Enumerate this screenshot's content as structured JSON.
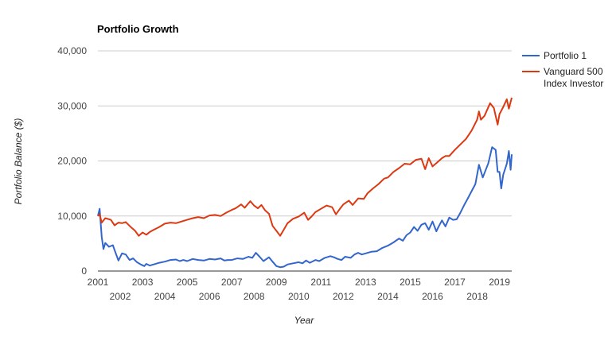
{
  "chart_data": {
    "type": "line",
    "title": "Portfolio Growth",
    "xlabel": "Year",
    "ylabel": "Portfolio Balance ($)",
    "xlim": [
      2001.0,
      2019.55
    ],
    "ylim": [
      0,
      40000
    ],
    "yticks": [
      0,
      10000,
      20000,
      30000,
      40000
    ],
    "ytick_labels": [
      "0",
      "10,000",
      "20,000",
      "30,000",
      "40,000"
    ],
    "xticks_top_row": [
      "2001",
      "2003",
      "2005",
      "2007",
      "2009",
      "2011",
      "2013",
      "2015",
      "2017",
      "2019"
    ],
    "xticks_bottom_row": [
      "2002",
      "2004",
      "2006",
      "2008",
      "2010",
      "2012",
      "2014",
      "2016",
      "2018"
    ],
    "grid": true,
    "legend_position": "right",
    "series": [
      {
        "name": "Portfolio 1",
        "color": "#3366cc",
        "points": [
          [
            2001.0,
            10000
          ],
          [
            2001.08,
            11300
          ],
          [
            2001.17,
            6200
          ],
          [
            2001.25,
            4000
          ],
          [
            2001.33,
            5100
          ],
          [
            2001.5,
            4400
          ],
          [
            2001.67,
            4700
          ],
          [
            2001.75,
            3800
          ],
          [
            2001.92,
            1900
          ],
          [
            2002.08,
            3200
          ],
          [
            2002.25,
            3000
          ],
          [
            2002.42,
            2000
          ],
          [
            2002.58,
            2300
          ],
          [
            2002.75,
            1600
          ],
          [
            2002.92,
            1200
          ],
          [
            2003.08,
            900
          ],
          [
            2003.17,
            1300
          ],
          [
            2003.33,
            1000
          ],
          [
            2003.5,
            1200
          ],
          [
            2003.75,
            1500
          ],
          [
            2004.0,
            1700
          ],
          [
            2004.25,
            2000
          ],
          [
            2004.5,
            2100
          ],
          [
            2004.67,
            1800
          ],
          [
            2004.83,
            2000
          ],
          [
            2005.0,
            1800
          ],
          [
            2005.25,
            2200
          ],
          [
            2005.5,
            2000
          ],
          [
            2005.75,
            1900
          ],
          [
            2006.0,
            2200
          ],
          [
            2006.25,
            2100
          ],
          [
            2006.5,
            2300
          ],
          [
            2006.67,
            1900
          ],
          [
            2006.83,
            2000
          ],
          [
            2007.0,
            2000
          ],
          [
            2007.25,
            2300
          ],
          [
            2007.5,
            2200
          ],
          [
            2007.75,
            2600
          ],
          [
            2007.92,
            2400
          ],
          [
            2008.08,
            3300
          ],
          [
            2008.25,
            2600
          ],
          [
            2008.42,
            1800
          ],
          [
            2008.67,
            2500
          ],
          [
            2008.83,
            1700
          ],
          [
            2009.0,
            900
          ],
          [
            2009.17,
            700
          ],
          [
            2009.33,
            800
          ],
          [
            2009.5,
            1200
          ],
          [
            2009.75,
            1400
          ],
          [
            2010.0,
            1600
          ],
          [
            2010.17,
            1400
          ],
          [
            2010.33,
            1900
          ],
          [
            2010.5,
            1500
          ],
          [
            2010.75,
            2000
          ],
          [
            2010.92,
            1800
          ],
          [
            2011.17,
            2400
          ],
          [
            2011.42,
            2700
          ],
          [
            2011.58,
            2500
          ],
          [
            2011.75,
            2200
          ],
          [
            2011.92,
            2000
          ],
          [
            2012.08,
            2600
          ],
          [
            2012.33,
            2400
          ],
          [
            2012.5,
            3000
          ],
          [
            2012.67,
            3300
          ],
          [
            2012.83,
            3000
          ],
          [
            2013.0,
            3200
          ],
          [
            2013.25,
            3500
          ],
          [
            2013.5,
            3600
          ],
          [
            2013.75,
            4200
          ],
          [
            2014.0,
            4600
          ],
          [
            2014.25,
            5200
          ],
          [
            2014.5,
            5900
          ],
          [
            2014.67,
            5500
          ],
          [
            2014.83,
            6500
          ],
          [
            2015.0,
            7000
          ],
          [
            2015.17,
            8000
          ],
          [
            2015.33,
            7300
          ],
          [
            2015.5,
            8400
          ],
          [
            2015.67,
            8700
          ],
          [
            2015.83,
            7500
          ],
          [
            2016.0,
            9000
          ],
          [
            2016.17,
            7200
          ],
          [
            2016.25,
            7900
          ],
          [
            2016.42,
            9200
          ],
          [
            2016.58,
            8100
          ],
          [
            2016.75,
            9700
          ],
          [
            2016.92,
            9300
          ],
          [
            2017.08,
            9400
          ],
          [
            2017.25,
            10600
          ],
          [
            2017.42,
            12000
          ],
          [
            2017.58,
            13200
          ],
          [
            2017.75,
            14500
          ],
          [
            2017.92,
            15800
          ],
          [
            2018.08,
            19300
          ],
          [
            2018.25,
            17000
          ],
          [
            2018.5,
            19600
          ],
          [
            2018.67,
            22500
          ],
          [
            2018.83,
            22000
          ],
          [
            2018.92,
            18000
          ],
          [
            2019.0,
            18000
          ],
          [
            2019.08,
            15000
          ],
          [
            2019.17,
            17500
          ],
          [
            2019.33,
            19500
          ],
          [
            2019.42,
            21800
          ],
          [
            2019.5,
            18400
          ],
          [
            2019.55,
            21200
          ]
        ]
      },
      {
        "name": "Vanguard 500 Index Investor",
        "color": "#dc3912",
        "points": [
          [
            2001.0,
            10000
          ],
          [
            2001.08,
            10300
          ],
          [
            2001.17,
            8800
          ],
          [
            2001.33,
            9600
          ],
          [
            2001.58,
            9300
          ],
          [
            2001.75,
            8300
          ],
          [
            2001.92,
            8800
          ],
          [
            2002.08,
            8700
          ],
          [
            2002.25,
            8900
          ],
          [
            2002.5,
            7900
          ],
          [
            2002.67,
            7300
          ],
          [
            2002.83,
            6400
          ],
          [
            2003.0,
            7000
          ],
          [
            2003.17,
            6600
          ],
          [
            2003.33,
            7100
          ],
          [
            2003.5,
            7500
          ],
          [
            2003.75,
            8000
          ],
          [
            2004.0,
            8600
          ],
          [
            2004.25,
            8800
          ],
          [
            2004.5,
            8700
          ],
          [
            2004.75,
            9000
          ],
          [
            2005.0,
            9300
          ],
          [
            2005.25,
            9600
          ],
          [
            2005.5,
            9800
          ],
          [
            2005.75,
            9600
          ],
          [
            2006.0,
            10100
          ],
          [
            2006.25,
            10200
          ],
          [
            2006.5,
            10000
          ],
          [
            2006.75,
            10600
          ],
          [
            2007.0,
            11100
          ],
          [
            2007.17,
            11400
          ],
          [
            2007.42,
            12100
          ],
          [
            2007.58,
            11500
          ],
          [
            2007.83,
            12700
          ],
          [
            2008.0,
            11900
          ],
          [
            2008.17,
            11400
          ],
          [
            2008.33,
            12000
          ],
          [
            2008.5,
            11000
          ],
          [
            2008.67,
            10400
          ],
          [
            2008.83,
            8200
          ],
          [
            2009.0,
            7300
          ],
          [
            2009.17,
            6400
          ],
          [
            2009.33,
            7500
          ],
          [
            2009.5,
            8700
          ],
          [
            2009.75,
            9500
          ],
          [
            2010.0,
            9900
          ],
          [
            2010.25,
            10600
          ],
          [
            2010.42,
            9300
          ],
          [
            2010.58,
            9900
          ],
          [
            2010.75,
            10700
          ],
          [
            2011.0,
            11300
          ],
          [
            2011.25,
            11900
          ],
          [
            2011.5,
            11600
          ],
          [
            2011.67,
            10300
          ],
          [
            2011.83,
            11200
          ],
          [
            2012.0,
            12100
          ],
          [
            2012.25,
            12800
          ],
          [
            2012.42,
            12000
          ],
          [
            2012.67,
            13200
          ],
          [
            2012.92,
            13100
          ],
          [
            2013.08,
            14100
          ],
          [
            2013.33,
            15000
          ],
          [
            2013.58,
            15800
          ],
          [
            2013.83,
            16800
          ],
          [
            2014.0,
            17000
          ],
          [
            2014.25,
            18000
          ],
          [
            2014.5,
            18700
          ],
          [
            2014.75,
            19500
          ],
          [
            2015.0,
            19400
          ],
          [
            2015.25,
            20200
          ],
          [
            2015.5,
            20400
          ],
          [
            2015.67,
            18500
          ],
          [
            2015.83,
            20500
          ],
          [
            2016.0,
            19000
          ],
          [
            2016.17,
            19600
          ],
          [
            2016.42,
            20500
          ],
          [
            2016.58,
            20900
          ],
          [
            2016.75,
            20900
          ],
          [
            2017.0,
            22000
          ],
          [
            2017.25,
            23000
          ],
          [
            2017.5,
            24000
          ],
          [
            2017.75,
            25500
          ],
          [
            2018.0,
            27500
          ],
          [
            2018.08,
            29000
          ],
          [
            2018.17,
            27500
          ],
          [
            2018.33,
            28200
          ],
          [
            2018.58,
            30500
          ],
          [
            2018.75,
            29600
          ],
          [
            2018.92,
            26600
          ],
          [
            2019.0,
            28500
          ],
          [
            2019.17,
            29800
          ],
          [
            2019.33,
            31200
          ],
          [
            2019.42,
            29500
          ],
          [
            2019.55,
            31500
          ]
        ]
      }
    ]
  }
}
